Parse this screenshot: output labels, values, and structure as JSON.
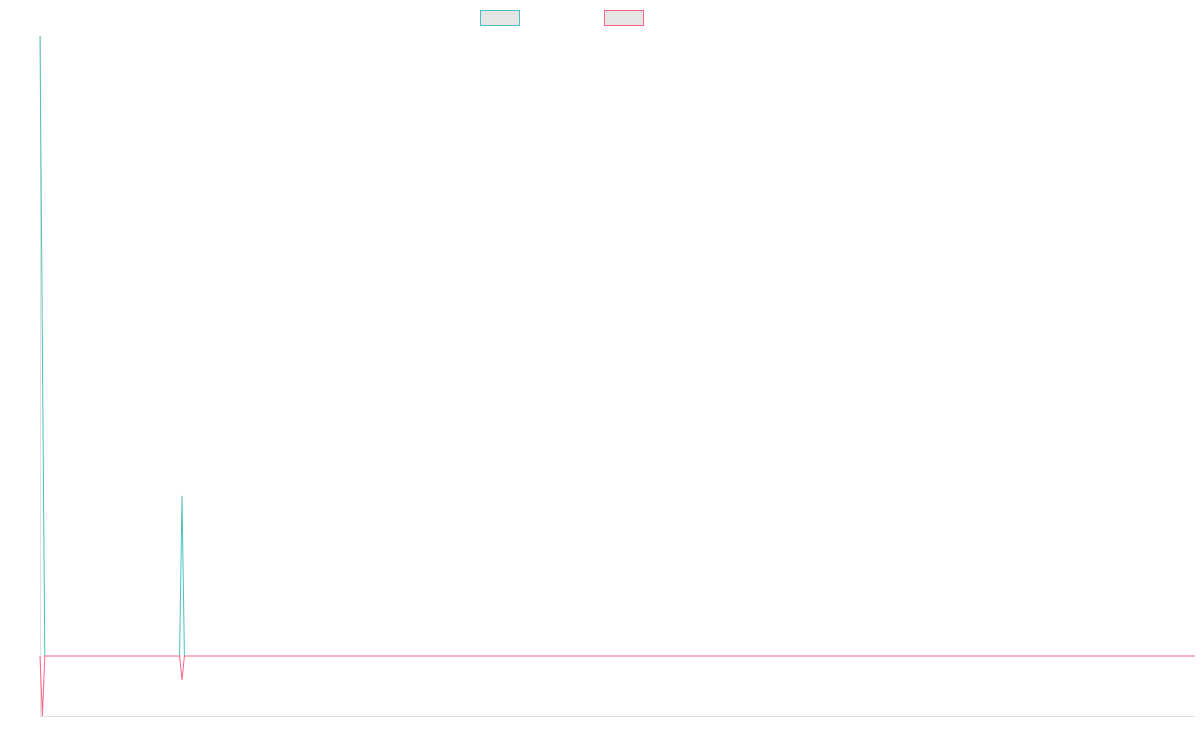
{
  "chart_data": {
    "type": "line",
    "title": "",
    "xlabel": "",
    "ylabel": "",
    "grid": false,
    "legend_placement": "top-center",
    "x_range": [
      0,
      480
    ],
    "ylim": [
      -1,
      10.33
    ],
    "series": [
      {
        "color": "#4bc0c0",
        "points": [
          [
            0,
            10.33
          ],
          [
            2,
            0
          ],
          [
            58,
            0
          ],
          [
            59,
            2.67
          ],
          [
            60,
            0
          ],
          [
            480,
            0
          ]
        ]
      },
      {
        "color": "#ff6384",
        "points": [
          [
            0,
            0
          ],
          [
            1,
            -1
          ],
          [
            2,
            0
          ],
          [
            58,
            0
          ],
          [
            59,
            -0.4
          ],
          [
            60,
            0
          ],
          [
            480,
            0
          ]
        ]
      }
    ]
  }
}
